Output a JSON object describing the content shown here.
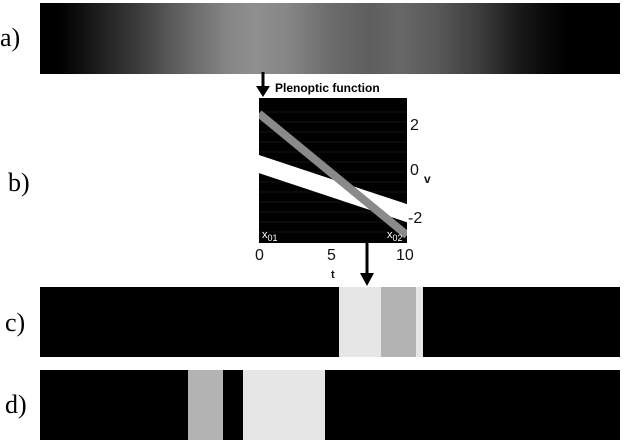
{
  "panel_labels": [
    "a)",
    "b)",
    "c)",
    "d)"
  ],
  "plot": {
    "caption": "Plenoptic function",
    "x_ticks": [
      "0",
      "5",
      "10"
    ],
    "x_tick_values": [
      0,
      5,
      10
    ],
    "xlabel": "t",
    "y_ticks": [
      "2",
      "0",
      "-2"
    ],
    "y_tick_values": [
      2,
      0,
      -2
    ],
    "ylabel": "v",
    "corner_labels": [
      {
        "main": "x",
        "sub": "01"
      },
      {
        "main": "x",
        "sub": "02"
      }
    ]
  },
  "colors": {
    "background": "#000000",
    "band_white": "#ffffff",
    "band_gray": "#8a8a8a",
    "light_segment": "#e6e6e6",
    "mid_segment": "#b3b3b3"
  },
  "chart_data": {
    "type": "line",
    "xlim": [
      0,
      10
    ],
    "ylim": [
      -2.7,
      2.9
    ],
    "series": [
      {
        "x": [
          0,
          10
        ],
        "y_top": [
          0.7,
          -1.2
        ],
        "y_bottom": [
          0,
          -1.9
        ]
      },
      {
        "x": [
          0,
          10
        ],
        "y": [
          2.3,
          -2.4
        ]
      }
    ]
  },
  "strip_c": [
    {
      "from": 0.516,
      "to": 0.588,
      "color": "#e6e6e6"
    },
    {
      "from": 0.588,
      "to": 0.648,
      "color": "#b3b3b3"
    },
    {
      "from": 0.648,
      "to": 0.66,
      "color": "#e6e6e6"
    }
  ],
  "strip_d": [
    {
      "from": 0.255,
      "to": 0.315,
      "color": "#b3b3b3"
    },
    {
      "from": 0.35,
      "to": 0.492,
      "color": "#e6e6e6"
    }
  ]
}
